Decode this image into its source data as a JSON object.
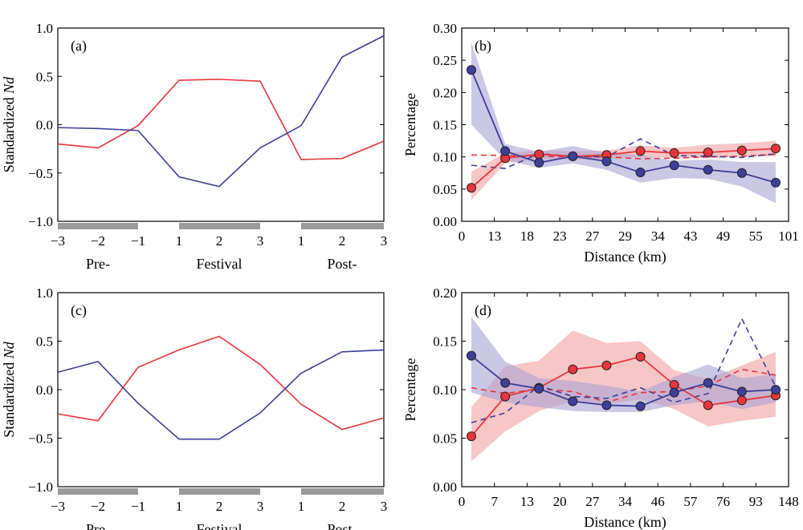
{
  "colors": {
    "red": "#e8353b",
    "blue": "#3d3f99",
    "red_fill": "#f2a0a2",
    "blue_fill": "#a8a4d4",
    "gray_bar": "#9a9a9a"
  },
  "chart_data": [
    {
      "panel": "(a)",
      "type": "line",
      "ylabel_plain": "Standardized ",
      "ylabel_italic": "Nd",
      "ylim": [
        -1.0,
        1.0
      ],
      "yticks": [
        "1.0",
        "0.5",
        "0.0",
        "−0.5",
        "−1.0"
      ],
      "x": [
        -3,
        -2,
        -1,
        1,
        2,
        3,
        1,
        2,
        3
      ],
      "xticks": [
        "−3",
        "−2",
        "−1",
        "1",
        "2",
        "3",
        "1",
        "2",
        "3"
      ],
      "groups": [
        "Pre-",
        "Festival",
        "Post-"
      ],
      "series": [
        {
          "color": "red",
          "values": [
            -0.2,
            -0.24,
            -0.01,
            0.46,
            0.47,
            0.45,
            -0.36,
            -0.35,
            -0.17
          ]
        },
        {
          "color": "blue",
          "values": [
            -0.03,
            -0.04,
            -0.06,
            -0.54,
            -0.64,
            -0.24,
            -0.01,
            0.7,
            0.92
          ]
        }
      ]
    },
    {
      "panel": "(b)",
      "type": "line",
      "ylabel": "Percentage",
      "xlabel": "Distance (km)",
      "ylim": [
        0.0,
        0.3
      ],
      "yticks": [
        "0.30",
        "0.25",
        "0.20",
        "0.15",
        "0.10",
        "0.05",
        "0.00"
      ],
      "xticks": [
        "0",
        "13",
        "18",
        "23",
        "27",
        "29",
        "34",
        "43",
        "49",
        "55",
        "101"
      ],
      "x": [
        1,
        2,
        3,
        4,
        5,
        6,
        7,
        8,
        9,
        10
      ],
      "series": [
        {
          "color": "red",
          "marker": true,
          "values": [
            0.052,
            0.098,
            0.104,
            0.101,
            0.103,
            0.109,
            0.106,
            0.107,
            0.11,
            0.113
          ],
          "band_lo": [
            0.033,
            0.09,
            0.097,
            0.096,
            0.096,
            0.1,
            0.098,
            0.098,
            0.101,
            0.101
          ],
          "band_hi": [
            0.077,
            0.106,
            0.11,
            0.109,
            0.11,
            0.118,
            0.114,
            0.119,
            0.121,
            0.125
          ]
        },
        {
          "color": "blue",
          "marker": true,
          "values": [
            0.235,
            0.109,
            0.091,
            0.101,
            0.093,
            0.076,
            0.087,
            0.08,
            0.075,
            0.06
          ],
          "band_lo": [
            0.15,
            0.095,
            0.083,
            0.09,
            0.08,
            0.06,
            0.067,
            0.066,
            0.054,
            0.028
          ],
          "band_hi": [
            0.278,
            0.12,
            0.108,
            0.117,
            0.106,
            0.103,
            0.094,
            0.096,
            0.092,
            0.092
          ]
        },
        {
          "color": "red",
          "dashed": true,
          "values": [
            0.103,
            0.102,
            0.101,
            0.1,
            0.1,
            0.097,
            0.098,
            0.1,
            0.101,
            0.104
          ]
        },
        {
          "color": "blue",
          "dashed": true,
          "values": [
            0.087,
            0.082,
            0.105,
            0.101,
            0.1,
            0.128,
            0.102,
            0.101,
            0.099,
            0.105
          ]
        }
      ]
    },
    {
      "panel": "(c)",
      "type": "line",
      "ylabel_plain": "Standardized ",
      "ylabel_italic": "Nd",
      "ylim": [
        -1.0,
        1.0
      ],
      "yticks": [
        "1.0",
        "0.5",
        "0.0",
        "−0.5",
        "−1.0"
      ],
      "x": [
        -3,
        -2,
        -1,
        1,
        2,
        3,
        1,
        2,
        3
      ],
      "xticks": [
        "−3",
        "−2",
        "−1",
        "1",
        "2",
        "3",
        "1",
        "2",
        "3"
      ],
      "groups": [
        "Pre-",
        "Festival",
        "Post-"
      ],
      "series": [
        {
          "color": "red",
          "values": [
            -0.25,
            -0.32,
            0.23,
            0.41,
            0.55,
            0.26,
            -0.15,
            -0.41,
            -0.29
          ]
        },
        {
          "color": "blue",
          "values": [
            0.18,
            0.29,
            -0.14,
            -0.51,
            -0.51,
            -0.24,
            0.17,
            0.39,
            0.41
          ]
        }
      ]
    },
    {
      "panel": "(d)",
      "type": "line",
      "ylabel": "Percentage",
      "xlabel": "Distance (km)",
      "ylim": [
        0.0,
        0.2
      ],
      "yticks": [
        "0.20",
        "0.15",
        "0.10",
        "0.05",
        "0.00"
      ],
      "xticks": [
        "0",
        "7",
        "13",
        "20",
        "27",
        "34",
        "46",
        "57",
        "76",
        "93",
        "148"
      ],
      "x": [
        1,
        2,
        3,
        4,
        5,
        6,
        7,
        8,
        9,
        10
      ],
      "series": [
        {
          "color": "red",
          "marker": true,
          "values": [
            0.052,
            0.093,
            0.102,
            0.121,
            0.125,
            0.134,
            0.105,
            0.084,
            0.089,
            0.094
          ],
          "band_lo": [
            0.026,
            0.057,
            0.078,
            0.088,
            0.085,
            0.09,
            0.08,
            0.062,
            0.068,
            0.072
          ],
          "band_hi": [
            0.082,
            0.124,
            0.13,
            0.161,
            0.148,
            0.15,
            0.12,
            0.111,
            0.125,
            0.139
          ]
        },
        {
          "color": "blue",
          "marker": true,
          "values": [
            0.135,
            0.107,
            0.101,
            0.088,
            0.084,
            0.083,
            0.097,
            0.107,
            0.098,
            0.1
          ],
          "band_lo": [
            0.097,
            0.087,
            0.082,
            0.078,
            0.077,
            0.077,
            0.084,
            0.088,
            0.08,
            0.087
          ],
          "band_hi": [
            0.175,
            0.129,
            0.112,
            0.109,
            0.104,
            0.098,
            0.113,
            0.126,
            0.112,
            0.116
          ]
        },
        {
          "color": "red",
          "dashed": true,
          "values": [
            0.102,
            0.096,
            0.101,
            0.098,
            0.087,
            0.097,
            0.098,
            0.104,
            0.121,
            0.115
          ]
        },
        {
          "color": "blue",
          "dashed": true,
          "values": [
            0.066,
            0.076,
            0.104,
            0.093,
            0.091,
            0.102,
            0.087,
            0.096,
            0.173,
            0.103
          ]
        }
      ]
    }
  ]
}
